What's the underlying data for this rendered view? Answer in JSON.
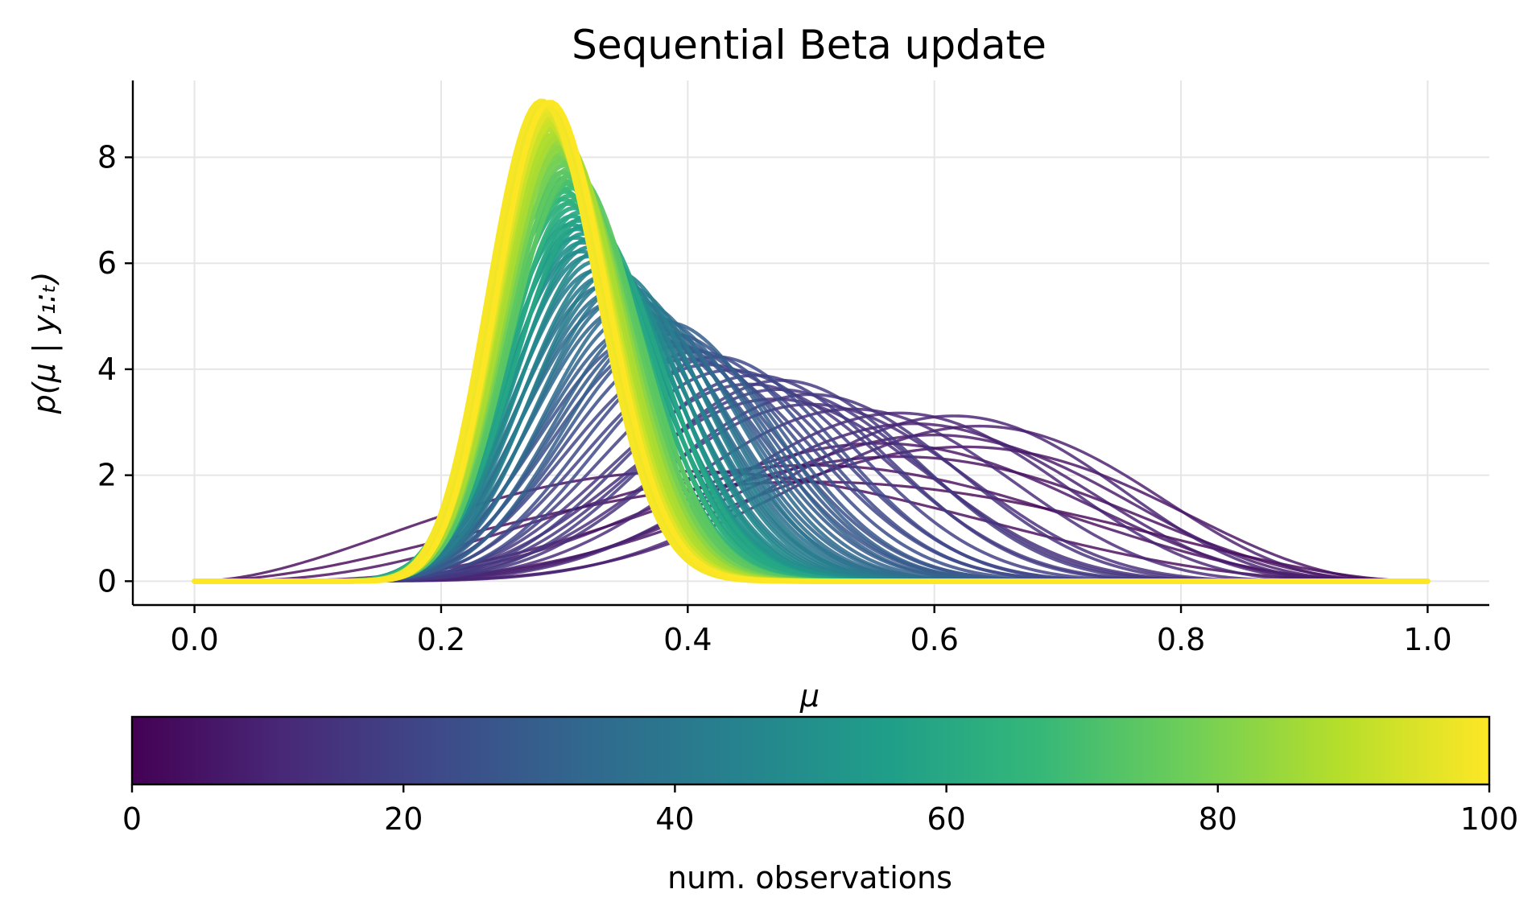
{
  "chart_data": {
    "type": "line",
    "title": "Sequential Beta update",
    "xlabel": "μ",
    "ylabel": "p(μ | y₁:ₜ)",
    "xlim": [
      -0.05,
      1.05
    ],
    "ylim": [
      -0.45,
      9.45
    ],
    "xticks": [
      "0.0",
      "0.2",
      "0.4",
      "0.6",
      "0.8",
      "1.0"
    ],
    "yticks": [
      "0",
      "2",
      "4",
      "6",
      "8"
    ],
    "grid": true,
    "prior": {
      "a": 3,
      "b": 3
    },
    "observations": [
      0,
      1,
      1,
      1,
      0,
      1,
      1,
      0,
      1,
      0,
      0,
      0,
      0,
      1,
      0,
      0,
      1,
      0,
      0,
      0,
      0,
      1,
      0,
      0,
      0,
      0,
      1,
      0,
      0,
      1,
      0,
      0,
      0,
      0,
      1,
      0,
      0,
      0,
      1,
      0,
      0,
      0,
      1,
      0,
      0,
      0,
      0,
      1,
      0,
      0,
      0,
      1,
      0,
      0,
      0,
      1,
      0,
      0,
      1,
      0,
      0,
      0,
      0,
      1,
      0,
      0,
      0,
      1,
      0,
      0,
      1,
      0,
      0,
      1,
      0,
      0,
      0,
      0,
      1,
      0,
      0,
      0,
      1,
      0,
      0,
      0,
      1,
      0,
      0,
      0,
      0,
      1,
      0,
      0,
      0,
      1,
      0,
      0,
      0,
      1
    ],
    "series_description": "Posterior Beta(a + successes, b + failures) density after t observations, t = 0..100",
    "colorbar": {
      "label": "num. observations",
      "min": 0,
      "max": 100,
      "ticks": [
        "0",
        "20",
        "40",
        "60",
        "80",
        "100"
      ],
      "colormap": "viridis",
      "colors": [
        "#440154",
        "#482878",
        "#3e4989",
        "#31688e",
        "#26828e",
        "#1f9e89",
        "#35b779",
        "#6ece58",
        "#b5de2b",
        "#fde725"
      ]
    }
  }
}
